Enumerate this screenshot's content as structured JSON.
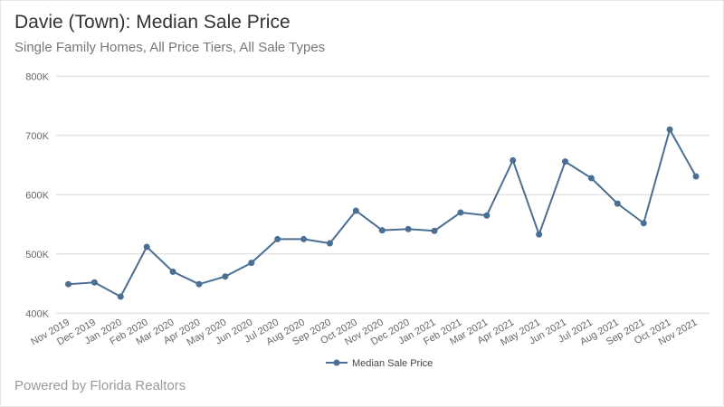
{
  "header": {
    "title": "Davie (Town): Median Sale Price",
    "subtitle": "Single Family Homes, All Price Tiers, All Sale Types"
  },
  "footer": {
    "text": "Powered by Florida Realtors"
  },
  "chart_data": {
    "type": "line",
    "title": "Davie (Town): Median Sale Price",
    "subtitle": "Single Family Homes, All Price Tiers, All Sale Types",
    "categories": [
      "Nov 2019",
      "Dec 2019",
      "Jan 2020",
      "Feb 2020",
      "Mar 2020",
      "Apr 2020",
      "May 2020",
      "Jun 2020",
      "Jul 2020",
      "Aug 2020",
      "Sep 2020",
      "Oct 2020",
      "Nov 2020",
      "Dec 2020",
      "Jan 2021",
      "Feb 2021",
      "Mar 2021",
      "Apr 2021",
      "May 2021",
      "Jun 2021",
      "Jul 2021",
      "Aug 2021",
      "Sep 2021",
      "Oct 2021",
      "Nov 2021"
    ],
    "series": [
      {
        "name": "Median Sale Price",
        "color": "#4a6f93",
        "values": [
          449000,
          452000,
          428000,
          512000,
          470000,
          449000,
          462000,
          485000,
          525000,
          525000,
          518000,
          573000,
          540000,
          542000,
          539000,
          570000,
          565000,
          658000,
          533000,
          656000,
          628000,
          585000,
          552000,
          710000,
          631000
        ]
      }
    ],
    "ylim": [
      400000,
      800000
    ],
    "yticks": [
      400000,
      500000,
      600000,
      700000,
      800000
    ],
    "ytick_labels": [
      "400K",
      "500K",
      "600K",
      "700K",
      "800K"
    ],
    "grid": true,
    "legend_position": "bottom"
  }
}
